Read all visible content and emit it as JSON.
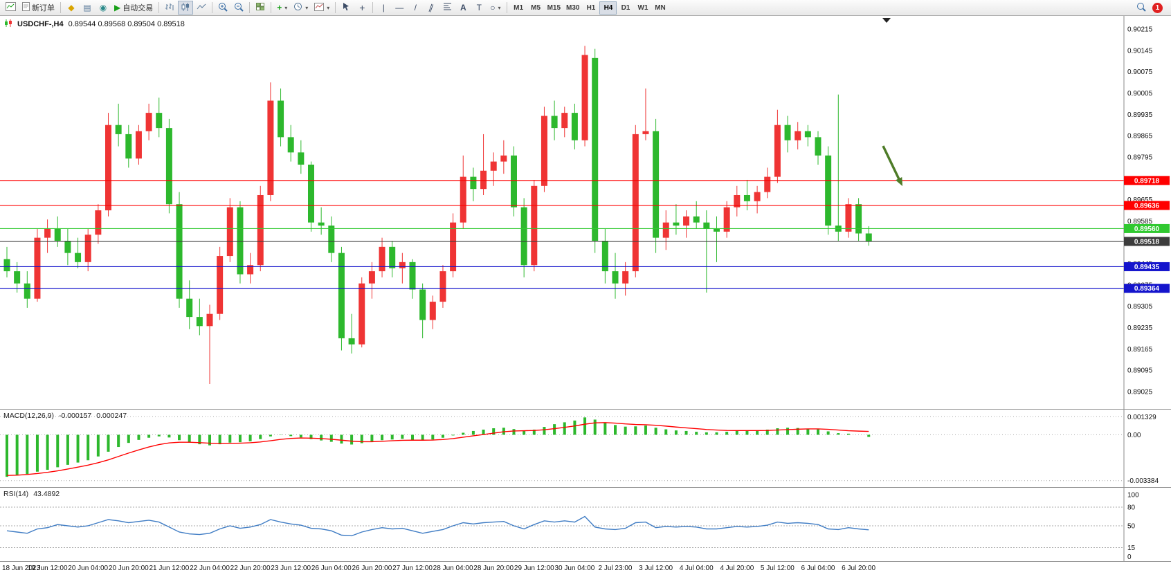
{
  "toolbar": {
    "new_order_label": "新订单",
    "autotrade_label": "自动交易",
    "timeframes": [
      "M1",
      "M5",
      "M15",
      "M30",
      "H1",
      "H4",
      "D1",
      "W1",
      "MN"
    ],
    "active_timeframe": "H4",
    "badge_count": "1"
  },
  "chart_header": {
    "symbol": "USDCHF-,H4",
    "ohlc": "0.89544 0.89568 0.89504 0.89518"
  },
  "chart_data": {
    "type": "candlestick",
    "symbol": "USDCHF-",
    "timeframe": "H4",
    "ohlc_display": {
      "open": "0.89544",
      "high": "0.89568",
      "low": "0.89504",
      "close": "0.89518"
    },
    "colors": {
      "bull": "#ef3434",
      "bear": "#2db82d",
      "resistance": "#ff0000",
      "support_green": "#30c930",
      "support_blue": "#1414cc",
      "current_price": "#3c3c3c",
      "macd_hist": "#2db82d",
      "macd_signal": "#ff0000",
      "rsi_line": "#3f7cc4",
      "arrow": "#4e7c28"
    },
    "price_axis": {
      "min": 0.89,
      "max": 0.9024,
      "tick_start": 0.89025,
      "tick_step": 0.0007,
      "tick_count": 18,
      "decimals": 5
    },
    "levels": [
      {
        "price": 0.89718,
        "label": "0.89718",
        "color": "#ff0000",
        "type": "resistance"
      },
      {
        "price": 0.89636,
        "label": "0.89636",
        "color": "#ff0000",
        "type": "resistance"
      },
      {
        "price": 0.8956,
        "label": "0.89560",
        "color": "#30c930",
        "type": "support"
      },
      {
        "price": 0.89518,
        "label": "0.89518",
        "color": "#3c3c3c",
        "type": "current-price"
      },
      {
        "price": 0.89435,
        "label": "0.89435",
        "color": "#1414cc",
        "type": "support"
      },
      {
        "price": 0.89364,
        "label": "0.89364",
        "color": "#1414cc",
        "type": "support"
      }
    ],
    "candles": [
      [
        0.8946,
        0.895,
        0.894,
        0.8942
      ],
      [
        0.8942,
        0.8945,
        0.8935,
        0.8938
      ],
      [
        0.8938,
        0.8942,
        0.893,
        0.8933
      ],
      [
        0.8933,
        0.8956,
        0.8932,
        0.8953
      ],
      [
        0.8953,
        0.8959,
        0.8948,
        0.8956
      ],
      [
        0.8956,
        0.896,
        0.895,
        0.8952
      ],
      [
        0.8952,
        0.8956,
        0.8944,
        0.8948
      ],
      [
        0.8948,
        0.8953,
        0.8943,
        0.8945
      ],
      [
        0.8945,
        0.8956,
        0.8942,
        0.8954
      ],
      [
        0.8954,
        0.8964,
        0.8951,
        0.8962
      ],
      [
        0.8962,
        0.8994,
        0.896,
        0.899
      ],
      [
        0.899,
        0.8997,
        0.8983,
        0.8987
      ],
      [
        0.8987,
        0.899,
        0.8976,
        0.8979
      ],
      [
        0.8979,
        0.899,
        0.8977,
        0.8988
      ],
      [
        0.8988,
        0.8997,
        0.8985,
        0.8994
      ],
      [
        0.8994,
        0.8999,
        0.8986,
        0.8989
      ],
      [
        0.8989,
        0.8992,
        0.8961,
        0.8964
      ],
      [
        0.8964,
        0.8968,
        0.893,
        0.8933
      ],
      [
        0.8933,
        0.8939,
        0.8923,
        0.8927
      ],
      [
        0.8927,
        0.8933,
        0.8921,
        0.8924
      ],
      [
        0.8924,
        0.8931,
        0.8905,
        0.8928
      ],
      [
        0.8928,
        0.895,
        0.8926,
        0.8947
      ],
      [
        0.8947,
        0.8966,
        0.8945,
        0.8963
      ],
      [
        0.8963,
        0.8965,
        0.8938,
        0.8941
      ],
      [
        0.8941,
        0.8948,
        0.8938,
        0.8944
      ],
      [
        0.8944,
        0.897,
        0.8942,
        0.8967
      ],
      [
        0.8967,
        0.9004,
        0.8965,
        0.8998
      ],
      [
        0.8998,
        0.9002,
        0.8983,
        0.8986
      ],
      [
        0.8986,
        0.899,
        0.8978,
        0.8981
      ],
      [
        0.8981,
        0.8985,
        0.8974,
        0.8977
      ],
      [
        0.8977,
        0.8978,
        0.8955,
        0.8958
      ],
      [
        0.8958,
        0.8963,
        0.8954,
        0.8957
      ],
      [
        0.8957,
        0.896,
        0.8945,
        0.8948
      ],
      [
        0.8948,
        0.895,
        0.8916,
        0.892
      ],
      [
        0.892,
        0.8928,
        0.8915,
        0.8918
      ],
      [
        0.8918,
        0.894,
        0.8917,
        0.8938
      ],
      [
        0.8938,
        0.8945,
        0.8933,
        0.8942
      ],
      [
        0.8942,
        0.8953,
        0.894,
        0.895
      ],
      [
        0.895,
        0.8952,
        0.894,
        0.8943
      ],
      [
        0.8943,
        0.8948,
        0.8938,
        0.8945
      ],
      [
        0.8945,
        0.8946,
        0.8933,
        0.8936
      ],
      [
        0.8936,
        0.8938,
        0.892,
        0.8926
      ],
      [
        0.8926,
        0.8934,
        0.8923,
        0.8932
      ],
      [
        0.8932,
        0.8944,
        0.893,
        0.8942
      ],
      [
        0.8942,
        0.8961,
        0.894,
        0.8958
      ],
      [
        0.8958,
        0.898,
        0.8956,
        0.8973
      ],
      [
        0.8973,
        0.8976,
        0.8965,
        0.8969
      ],
      [
        0.8969,
        0.8987,
        0.8967,
        0.8975
      ],
      [
        0.8975,
        0.8981,
        0.897,
        0.8978
      ],
      [
        0.8978,
        0.8985,
        0.8974,
        0.898
      ],
      [
        0.898,
        0.8983,
        0.896,
        0.8963
      ],
      [
        0.8963,
        0.8966,
        0.894,
        0.8944
      ],
      [
        0.8944,
        0.8972,
        0.8942,
        0.897
      ],
      [
        0.897,
        0.8996,
        0.8968,
        0.8993
      ],
      [
        0.8993,
        0.8998,
        0.8985,
        0.8989
      ],
      [
        0.8989,
        0.8996,
        0.8986,
        0.8994
      ],
      [
        0.8994,
        0.8997,
        0.8982,
        0.8985
      ],
      [
        0.8985,
        0.9016,
        0.8983,
        0.9013
      ],
      [
        0.9012,
        0.9015,
        0.8948,
        0.8952
      ],
      [
        0.8952,
        0.8956,
        0.8938,
        0.8942
      ],
      [
        0.8942,
        0.8948,
        0.8933,
        0.8938
      ],
      [
        0.8938,
        0.8945,
        0.8934,
        0.8942
      ],
      [
        0.8942,
        0.899,
        0.894,
        0.8987
      ],
      [
        0.8987,
        0.9002,
        0.8985,
        0.8988
      ],
      [
        0.8988,
        0.8992,
        0.8948,
        0.8953
      ],
      [
        0.8953,
        0.8962,
        0.8949,
        0.8958
      ],
      [
        0.8958,
        0.8964,
        0.8954,
        0.8957
      ],
      [
        0.8957,
        0.8962,
        0.8953,
        0.896
      ],
      [
        0.896,
        0.8965,
        0.8956,
        0.8958
      ],
      [
        0.8958,
        0.8962,
        0.8935,
        0.8956
      ],
      [
        0.8956,
        0.896,
        0.8945,
        0.8955
      ],
      [
        0.8955,
        0.8965,
        0.8953,
        0.8963
      ],
      [
        0.8963,
        0.897,
        0.896,
        0.8967
      ],
      [
        0.8967,
        0.8972,
        0.8962,
        0.8965
      ],
      [
        0.8965,
        0.897,
        0.8961,
        0.8968
      ],
      [
        0.8968,
        0.8976,
        0.8966,
        0.8973
      ],
      [
        0.8973,
        0.8995,
        0.8971,
        0.899
      ],
      [
        0.899,
        0.8993,
        0.8981,
        0.8985
      ],
      [
        0.8985,
        0.8991,
        0.8982,
        0.8988
      ],
      [
        0.8988,
        0.899,
        0.8983,
        0.8986
      ],
      [
        0.8986,
        0.8988,
        0.8977,
        0.898
      ],
      [
        0.898,
        0.8983,
        0.8954,
        0.8957
      ],
      [
        0.8957,
        0.9,
        0.8952,
        0.8955
      ],
      [
        0.8955,
        0.8966,
        0.8953,
        0.8964
      ],
      [
        0.8964,
        0.8966,
        0.8952,
        0.89544
      ],
      [
        0.89544,
        0.89568,
        0.89504,
        0.89518
      ]
    ],
    "time_labels": [
      "18 Jun 2023",
      "19 Jun 12:00",
      "20 Jun 04:00",
      "20 Jun 20:00",
      "21 Jun 12:00",
      "22 Jun 04:00",
      "22 Jun 20:00",
      "23 Jun 12:00",
      "26 Jun 04:00",
      "26 Jun 20:00",
      "27 Jun 12:00",
      "28 Jun 04:00",
      "28 Jun 20:00",
      "29 Jun 12:00",
      "30 Jun 04:00",
      "2 Jul 23:00",
      "3 Jul 12:00",
      "4 Jul 04:00",
      "4 Jul 20:00",
      "5 Jul 12:00",
      "6 Jul 04:00",
      "6 Jul 20:00"
    ],
    "macd": {
      "label": "MACD(12,26,9)",
      "value": "-0.000157",
      "signal_value": "0.000247",
      "axis_labels": [
        "0.001329",
        "0.00",
        "-0.003384"
      ],
      "top_level": 0.001329,
      "bottom_level": -0.003384,
      "scale_max": 0.00145,
      "scale_min": -0.00345,
      "histogram": [
        -0.0031,
        -0.003,
        -0.0029,
        -0.00272,
        -0.00258,
        -0.0024,
        -0.00222,
        -0.00205,
        -0.00188,
        -0.0016,
        -0.00125,
        -0.0009,
        -0.0006,
        -0.00038,
        -0.00022,
        -0.00012,
        -0.0002,
        -0.0004,
        -0.00058,
        -0.0007,
        -0.00078,
        -0.0007,
        -0.00058,
        -0.00055,
        -0.00048,
        -0.00032,
        -0.00012,
        -2e-05,
        -0.0001,
        -0.0002,
        -0.00032,
        -0.00042,
        -0.00052,
        -0.00065,
        -0.00072,
        -0.00062,
        -0.0005,
        -0.0004,
        -0.00035,
        -0.0003,
        -0.00038,
        -0.00042,
        -0.00035,
        -0.00022,
        -5e-05,
        0.00015,
        0.00028,
        0.00038,
        0.00048,
        0.00052,
        0.00042,
        0.0003,
        0.00038,
        0.00058,
        0.00078,
        0.00092,
        0.00105,
        0.00128,
        0.00112,
        0.0009,
        0.00072,
        0.0006,
        0.00062,
        0.00068,
        0.00052,
        0.0004,
        0.00032,
        0.00028,
        0.00022,
        0.00018,
        0.00018,
        0.00022,
        0.00028,
        0.0003,
        0.00032,
        0.00038,
        0.00048,
        0.00052,
        0.0005,
        0.00045,
        0.0004,
        0.00025,
        0.00012,
        8e-05,
        0.0,
        -0.000157
      ],
      "signal": [
        -0.003,
        -0.00298,
        -0.00293,
        -0.00286,
        -0.00277,
        -0.00266,
        -0.00253,
        -0.00239,
        -0.00224,
        -0.00206,
        -0.00185,
        -0.0016,
        -0.00135,
        -0.00112,
        -0.0009,
        -0.00072,
        -0.0006,
        -0.00055,
        -0.00055,
        -0.00058,
        -0.00062,
        -0.00065,
        -0.00064,
        -0.00062,
        -0.00059,
        -0.00053,
        -0.00044,
        -0.00034,
        -0.00027,
        -0.00024,
        -0.00025,
        -0.00028,
        -0.00033,
        -0.0004,
        -0.00047,
        -0.00051,
        -0.00051,
        -0.00048,
        -0.00044,
        -0.00041,
        -0.0004,
        -0.0004,
        -0.00039,
        -0.00035,
        -0.00028,
        -0.00018,
        -8e-05,
        2e-05,
        0.00012,
        0.00022,
        0.00028,
        0.0003,
        0.00032,
        0.00037,
        0.00045,
        0.00055,
        0.00065,
        0.00078,
        0.00088,
        0.0009,
        0.00086,
        0.0008,
        0.00076,
        0.00074,
        0.0007,
        0.00064,
        0.00057,
        0.00051,
        0.00045,
        0.00039,
        0.00035,
        0.00032,
        0.00031,
        0.00031,
        0.00031,
        0.00032,
        0.00035,
        0.00038,
        0.00041,
        0.00043,
        0.00043,
        0.0004,
        0.00035,
        0.0003,
        0.00027,
        0.000247
      ]
    },
    "rsi": {
      "label": "RSI(14)",
      "value": "43.4892",
      "levels": [
        80,
        50,
        15
      ],
      "axis_labels": [
        "100",
        "80",
        "50",
        "15",
        "0"
      ],
      "values": [
        42,
        40,
        38,
        45,
        47,
        52,
        50,
        48,
        50,
        55,
        60,
        58,
        55,
        57,
        59,
        56,
        48,
        40,
        37,
        36,
        38,
        45,
        50,
        46,
        48,
        52,
        60,
        56,
        53,
        51,
        46,
        45,
        42,
        35,
        34,
        40,
        44,
        47,
        45,
        46,
        42,
        38,
        41,
        44,
        50,
        55,
        53,
        55,
        56,
        57,
        50,
        45,
        52,
        58,
        56,
        58,
        56,
        65,
        48,
        45,
        44,
        46,
        55,
        56,
        47,
        49,
        48,
        49,
        48,
        45,
        45,
        47,
        49,
        48,
        49,
        51,
        56,
        54,
        55,
        54,
        52,
        45,
        44,
        47,
        45,
        43.4892
      ]
    },
    "arrow_annotation": {
      "color": "#4e7c28",
      "direction": "down-right"
    }
  }
}
